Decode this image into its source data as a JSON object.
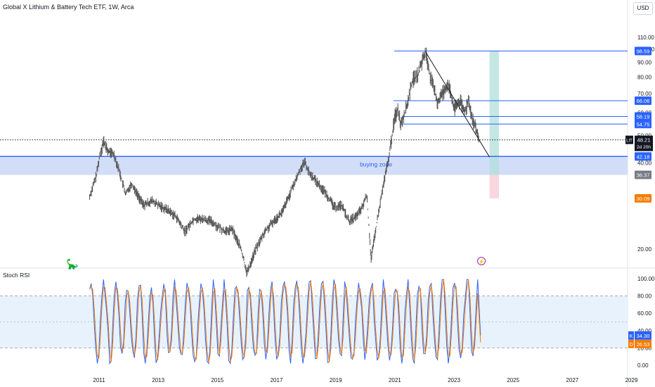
{
  "header": {
    "title": "Global X Lithium & Battery Tech ETF, 1W, Arca",
    "currency_button": "USD"
  },
  "rsi_panel": {
    "label": "Stoch RSI"
  },
  "chart_data": [
    {
      "type": "line",
      "subtype": "weekly price (candlestick-like)",
      "title": "Global X Lithium & Battery Tech ETF, 1W, Arca",
      "symbol": "LIT",
      "x_ticks": [
        "2011",
        "2013",
        "2015",
        "2017",
        "2019",
        "2021",
        "2023",
        "2025",
        "2027",
        "2029"
      ],
      "y_ticks": [
        "20.00",
        "30.00",
        "40.00",
        "50.00",
        "60.00",
        "70.00",
        "80.00",
        "90.00",
        "100.00",
        "110.00"
      ],
      "ylim": [
        14,
        113
      ],
      "scale": "log",
      "price_path": [
        [
          2010.68,
          30.5
        ],
        [
          2010.9,
          36
        ],
        [
          2011.05,
          44
        ],
        [
          2011.15,
          47.5
        ],
        [
          2011.3,
          44
        ],
        [
          2011.5,
          43
        ],
        [
          2011.7,
          37
        ],
        [
          2011.9,
          31
        ],
        [
          2012.1,
          34
        ],
        [
          2012.3,
          31
        ],
        [
          2012.5,
          28.5
        ],
        [
          2012.8,
          29.5
        ],
        [
          2013.0,
          28.5
        ],
        [
          2013.3,
          27.5
        ],
        [
          2013.6,
          26
        ],
        [
          2013.9,
          23
        ],
        [
          2014.2,
          25.5
        ],
        [
          2014.5,
          25.5
        ],
        [
          2014.8,
          25
        ],
        [
          2015.0,
          24
        ],
        [
          2015.3,
          23
        ],
        [
          2015.5,
          23.5
        ],
        [
          2015.8,
          20
        ],
        [
          2016.0,
          16.5
        ],
        [
          2016.3,
          20
        ],
        [
          2016.6,
          23
        ],
        [
          2016.9,
          25
        ],
        [
          2017.2,
          27
        ],
        [
          2017.5,
          32
        ],
        [
          2017.8,
          38
        ],
        [
          2017.95,
          40.5
        ],
        [
          2018.1,
          37
        ],
        [
          2018.4,
          34
        ],
        [
          2018.7,
          31
        ],
        [
          2018.95,
          28
        ],
        [
          2019.2,
          28.5
        ],
        [
          2019.45,
          25
        ],
        [
          2019.7,
          26
        ],
        [
          2019.9,
          28
        ],
        [
          2020.05,
          31
        ],
        [
          2020.2,
          18.5
        ],
        [
          2020.4,
          25
        ],
        [
          2020.6,
          33
        ],
        [
          2020.8,
          42
        ],
        [
          2021.0,
          58
        ],
        [
          2021.1,
          62
        ],
        [
          2021.2,
          55
        ],
        [
          2021.4,
          63
        ],
        [
          2021.6,
          78
        ],
        [
          2021.8,
          82
        ],
        [
          2021.95,
          93
        ],
        [
          2022.05,
          97.5
        ],
        [
          2022.2,
          80
        ],
        [
          2022.45,
          65
        ],
        [
          2022.6,
          70
        ],
        [
          2022.8,
          76
        ],
        [
          2023.0,
          62
        ],
        [
          2023.2,
          66
        ],
        [
          2023.35,
          60
        ],
        [
          2023.5,
          67
        ],
        [
          2023.6,
          58
        ],
        [
          2023.75,
          52
        ],
        [
          2023.85,
          48.21
        ]
      ],
      "horizontal_levels": [
        {
          "value": 98.59,
          "label": "98.59",
          "color": "#2962ff"
        },
        {
          "value": 66.06,
          "label": "66.06",
          "color": "#2962ff"
        },
        {
          "value": 58.19,
          "label": "58.19",
          "color": "#2962ff"
        },
        {
          "value": 54.75,
          "label": "54.75",
          "color": "#2962ff"
        },
        {
          "value": 42.18,
          "label": "42.18",
          "color": "#2962ff"
        }
      ],
      "current_price": {
        "symbol": "LIT",
        "value": "48.21",
        "countdown": "2d 20h"
      },
      "other_price_labels": [
        {
          "value": 36.37,
          "label": "36.37",
          "color": "#787b86"
        },
        {
          "value": 30.09,
          "label": "30.09",
          "color": "#f57c00"
        }
      ],
      "zone": {
        "label": "buying zone",
        "low": 36.37,
        "high": 42.18
      },
      "trendline": {
        "from": [
          2022.05,
          97.5
        ],
        "to": [
          2024.2,
          42
        ]
      },
      "position_tool": {
        "x_from": 2024.2,
        "x_to": 2024.52,
        "target": 98.59,
        "entry": 36.37,
        "stop": 30.09
      },
      "current_x": 2023.85,
      "colors": {
        "candle": "#5a5a5a",
        "level": "#2962ff",
        "zone": "#cdd9f7",
        "target": "#b2dfdb",
        "stop": "#f8d3dc",
        "price_tag": "#131722",
        "stop_tag": "#f57c00"
      }
    },
    {
      "type": "line",
      "title": "Stoch RSI",
      "y_ticks": [
        "0.00",
        "20.00",
        "40.00",
        "60.00",
        "80.00",
        "100.00"
      ],
      "ylim": [
        0,
        100
      ],
      "bands": [
        20,
        50,
        80
      ],
      "series": [
        {
          "name": "K",
          "value": "34.30",
          "color": "#2962ff"
        },
        {
          "name": "D",
          "value": "26.53",
          "color": "#f57c00"
        }
      ]
    }
  ]
}
